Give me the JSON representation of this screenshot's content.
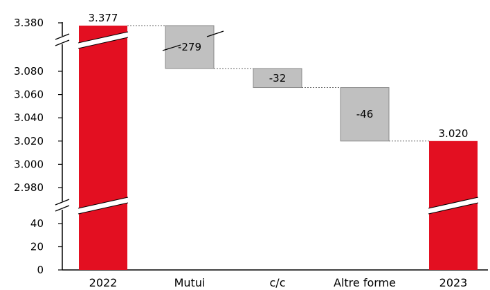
{
  "chart_data": {
    "type": "waterfall",
    "title": "",
    "xlabel": "",
    "ylabel": "",
    "categories": [
      "2022",
      "Mutui",
      "c/c",
      "Altre forme",
      "2023"
    ],
    "steps": [
      {
        "category": "2022",
        "kind": "total",
        "value": 3377,
        "label": "3.377"
      },
      {
        "category": "Mutui",
        "kind": "delta",
        "value": -279,
        "label": "-279"
      },
      {
        "category": "c/c",
        "kind": "delta",
        "value": -32,
        "label": "-32"
      },
      {
        "category": "Altre forme",
        "kind": "delta",
        "value": -46,
        "label": "-46"
      },
      {
        "category": "2023",
        "kind": "total",
        "value": 3020,
        "label": "3.020"
      }
    ],
    "y_axis_broken": true,
    "y_segments": [
      {
        "range": [
          0,
          40
        ],
        "ticks": [
          0,
          20,
          40
        ],
        "tick_labels": [
          "0",
          "20",
          "40"
        ]
      },
      {
        "range": [
          2980,
          3080
        ],
        "ticks": [
          2980,
          3000,
          3020,
          3040,
          3060,
          3080
        ],
        "tick_labels": [
          "2.980",
          "3.000",
          "3.020",
          "3.040",
          "3.060",
          "3.080"
        ]
      },
      {
        "range": [
          3380,
          3380
        ],
        "ticks": [
          3380
        ],
        "tick_labels": [
          "3.380"
        ]
      }
    ],
    "colors": {
      "total": "#e30f21",
      "delta": "#c0c0c0",
      "delta_border": "#8a8a8a",
      "connector": "#666666"
    },
    "grid": false,
    "legend": "none"
  }
}
